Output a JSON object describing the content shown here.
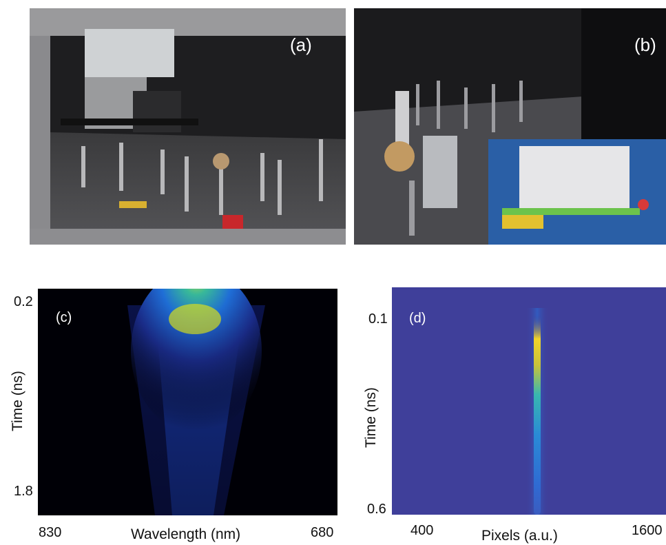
{
  "panels": {
    "a": "(a)",
    "b": "(b)",
    "c": "(c)",
    "d": "(d)"
  },
  "plot_c": {
    "ylabel": "Time (ns)",
    "xlabel": "Wavelength (nm)",
    "y_ticks": [
      "0.2",
      "1.8"
    ],
    "x_ticks": [
      "830",
      "680"
    ]
  },
  "plot_d": {
    "ylabel": "Time (ns)",
    "xlabel": "Pixels (a.u.)",
    "y_ticks": [
      "0.1",
      "0.6"
    ],
    "x_ticks": [
      "400",
      "1600"
    ]
  },
  "chart_data": [
    {
      "type": "heatmap",
      "panel": "(c)",
      "xlabel": "Wavelength (nm)",
      "ylabel": "Time (ns)",
      "xlim": [
        830,
        680
      ],
      "ylim": [
        0.2,
        1.8
      ],
      "colormap": "parula",
      "peak": {
        "wavelength_nm": 755,
        "time_ns": 0.3
      }
    },
    {
      "type": "heatmap",
      "panel": "(d)",
      "xlabel": "Pixels (a.u.)",
      "ylabel": "Time (ns)",
      "xlim": [
        400,
        1600
      ],
      "ylim": [
        0.1,
        0.6
      ],
      "colormap": "parula",
      "peak": {
        "pixel": 1020,
        "time_ns": 0.12
      }
    }
  ]
}
